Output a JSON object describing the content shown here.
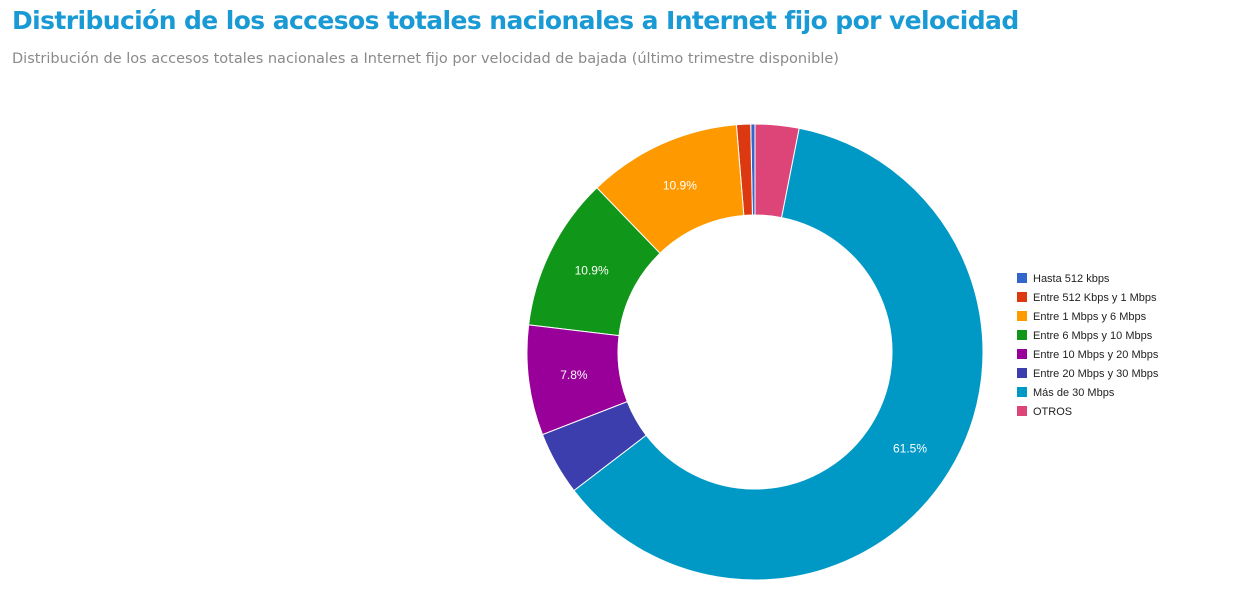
{
  "header": {
    "title": "Distribución de los accesos totales nacionales a Internet fijo por velocidad",
    "subtitle": "Distribución de los accesos totales nacionales a Internet fijo por velocidad de bajada (último trimestre disponible)"
  },
  "chart_data": {
    "type": "pie",
    "donut": true,
    "legend_position": "right",
    "categories": [
      "Hasta 512 kbps",
      "Entre 512 Kbps y 1 Mbps",
      "Entre 1 Mbps y 6 Mbps",
      "Entre 6 Mbps y 10 Mbps",
      "Entre 10 Mbps y 20 Mbps",
      "Entre 20 Mbps y 30 Mbps",
      "Más de 30 Mbps",
      "OTROS"
    ],
    "values": [
      0.3,
      1.0,
      10.9,
      10.9,
      7.8,
      4.5,
      61.5,
      3.1
    ],
    "colors": [
      "#3366cc",
      "#dc3912",
      "#ff9900",
      "#109618",
      "#990099",
      "#3b3eac",
      "#0099c6",
      "#dd4477"
    ],
    "labels": [
      "",
      "",
      "10.9%",
      "10.9%",
      "7.8%",
      "",
      "61.5%",
      ""
    ]
  }
}
